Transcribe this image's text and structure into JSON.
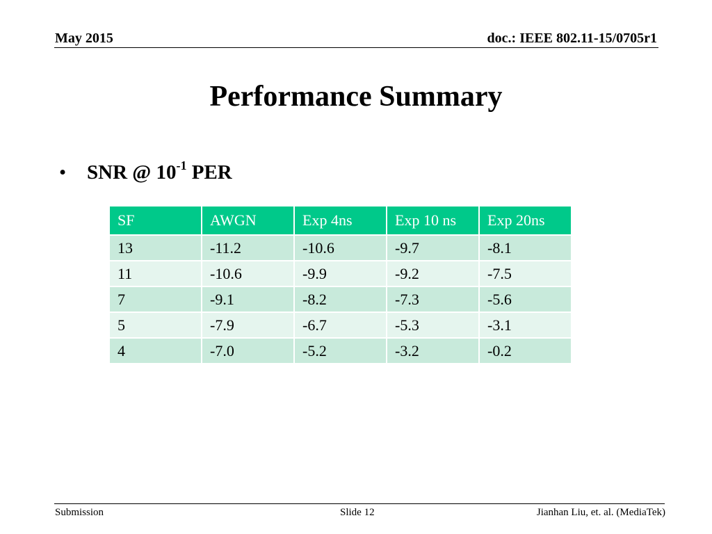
{
  "header": {
    "date": "May 2015",
    "doc_id": "doc.: IEEE 802.11-15/0705r1"
  },
  "title": "Performance Summary",
  "bullet": {
    "marker": "•",
    "prefix": "SNR @ 10",
    "exponent": "-1",
    "suffix": " PER"
  },
  "table": {
    "header_color": "#00c98a",
    "columns": [
      "SF",
      "AWGN",
      "Exp 4ns",
      "Exp 10 ns",
      "Exp 20ns"
    ],
    "rows": [
      [
        "13",
        "-11.2",
        "-10.6",
        "-9.7",
        "-8.1"
      ],
      [
        "11",
        "-10.6",
        "-9.9",
        "-9.2",
        "-7.5"
      ],
      [
        "7",
        "-9.1",
        "-8.2",
        "-7.3",
        "-5.6"
      ],
      [
        "5",
        "-7.9",
        "-6.7",
        "-5.3",
        "-3.1"
      ],
      [
        "4",
        "-7.0",
        "-5.2",
        "-3.2",
        "-0.2"
      ]
    ]
  },
  "footer": {
    "left": "Submission",
    "center": "Slide 12",
    "right": "Jianhan Liu, et. al. (MediaTek)"
  }
}
